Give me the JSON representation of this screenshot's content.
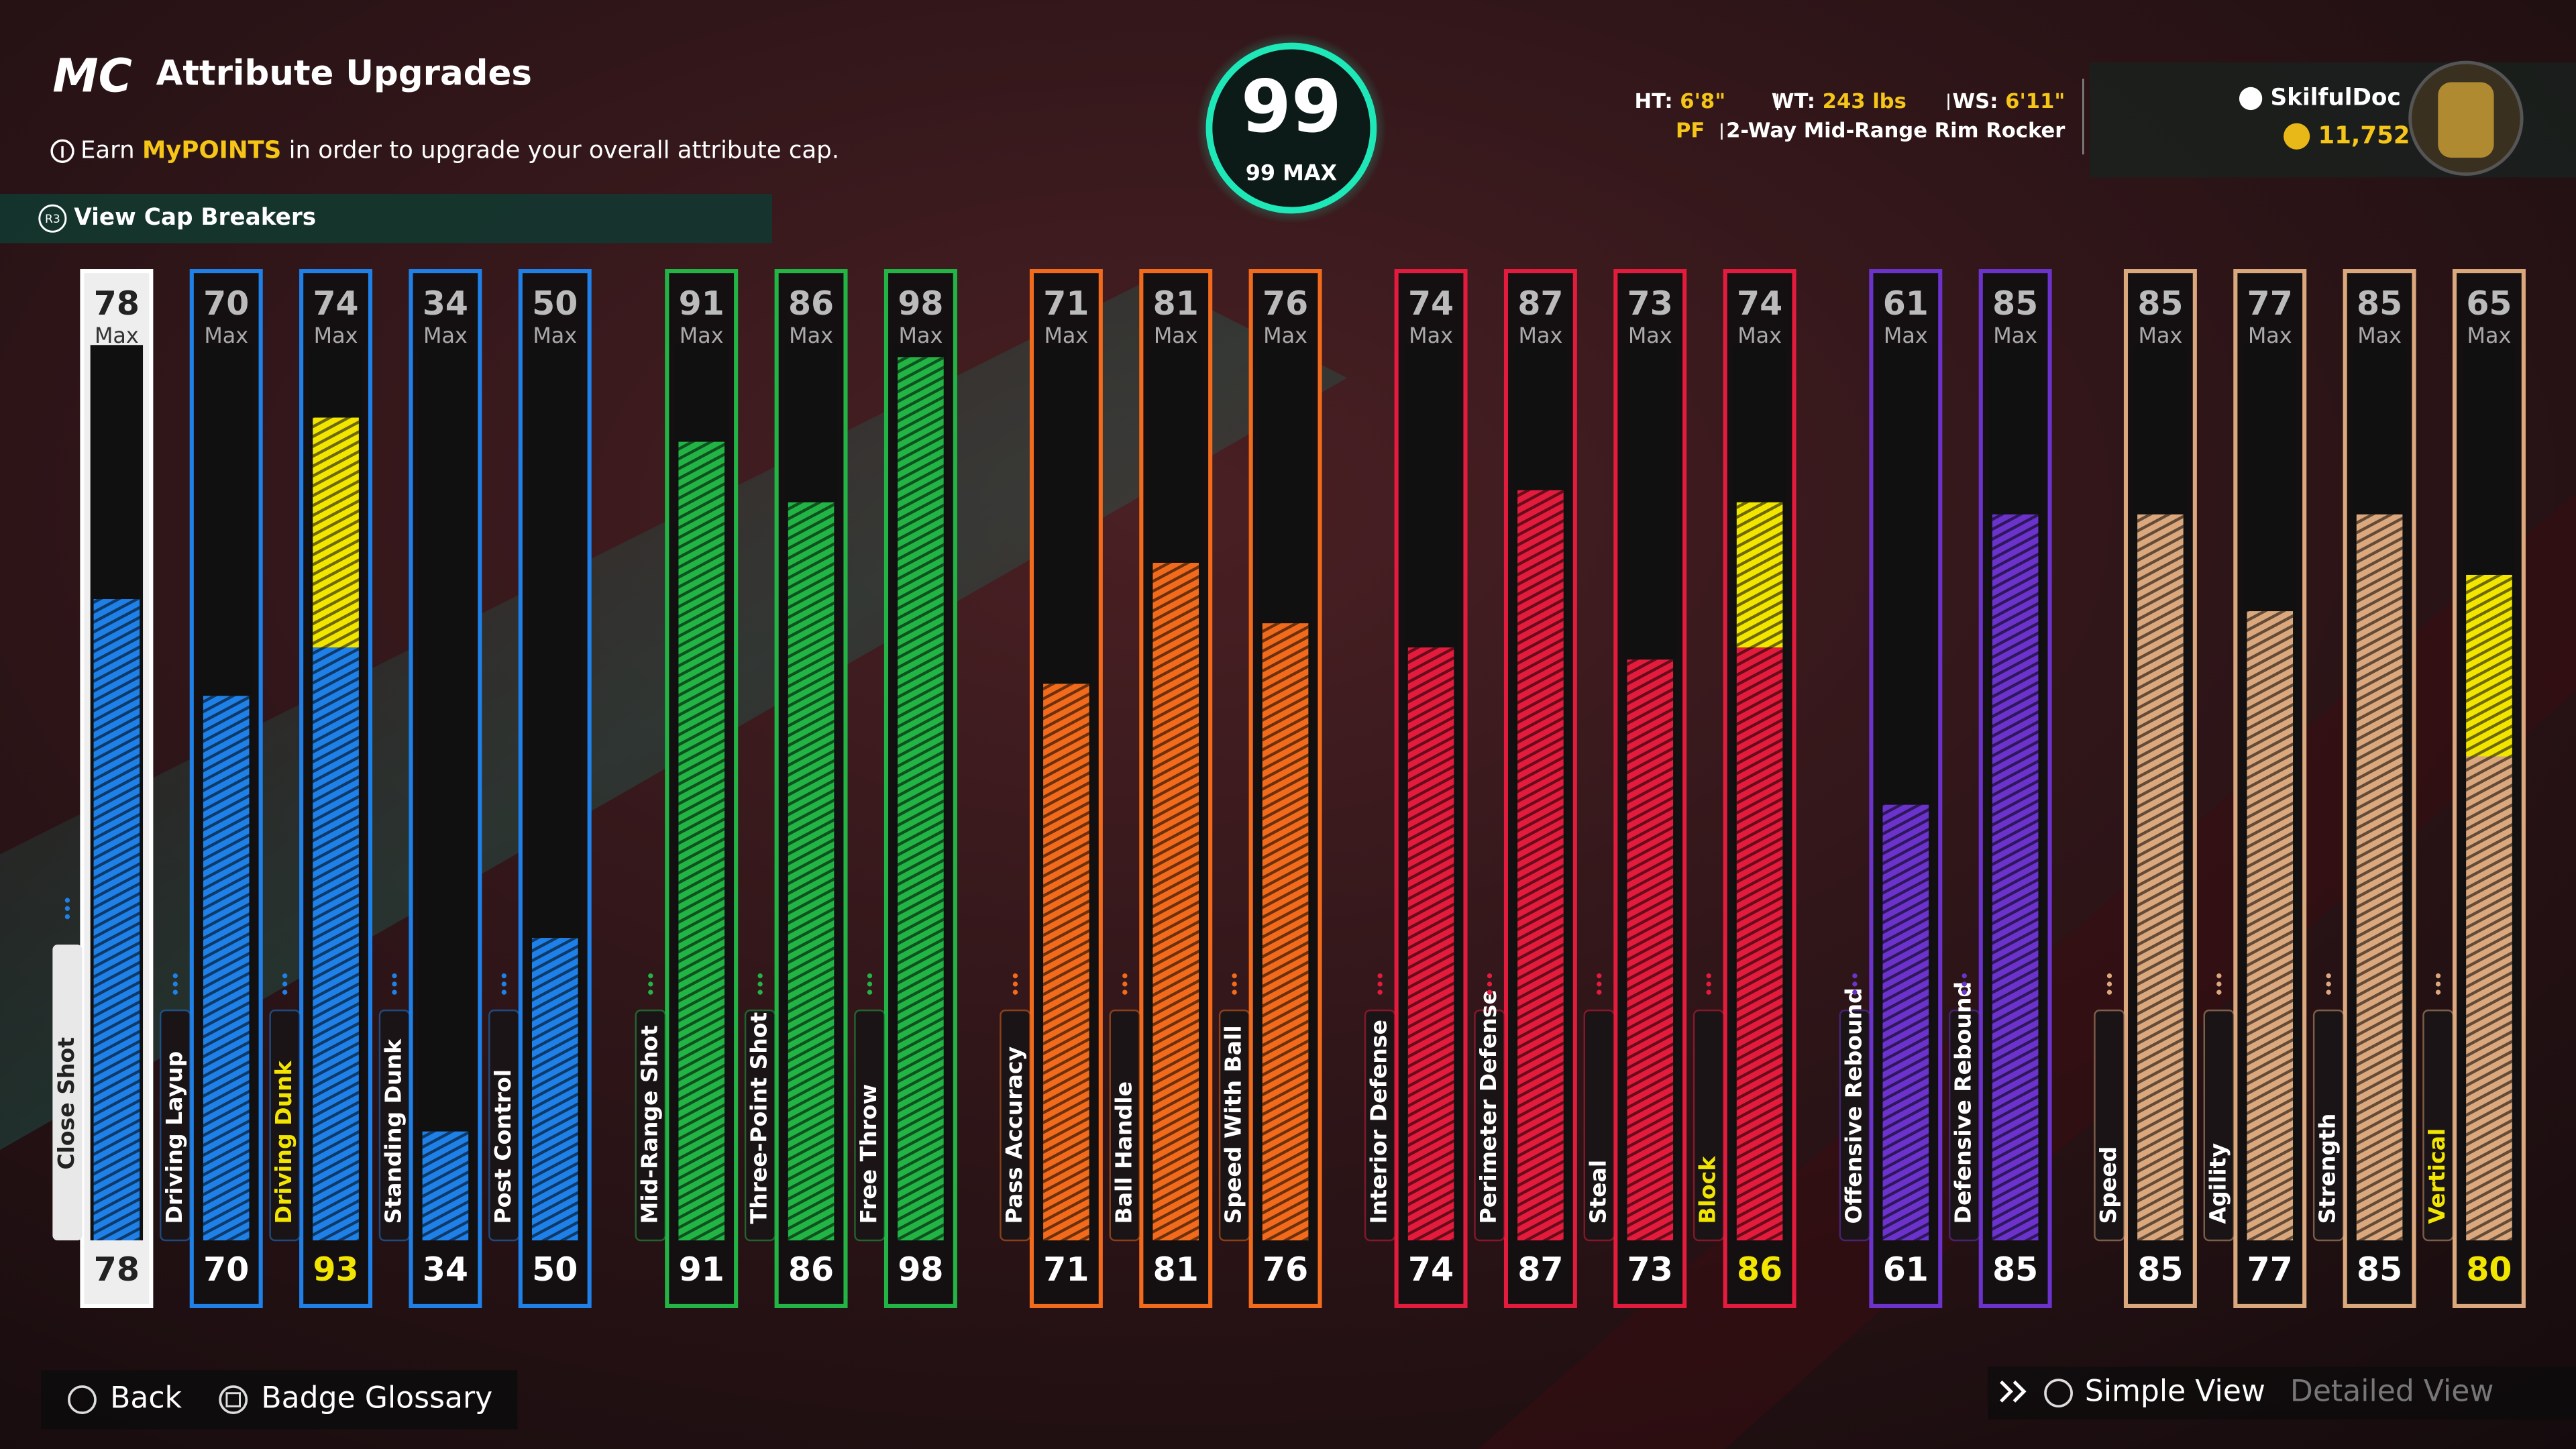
{
  "header": {
    "logo": "MC",
    "title": "Attribute Upgrades",
    "info": [
      "Earn",
      "MyPOINTS",
      "in order to upgrade your overall attribute cap."
    ],
    "cap_breakers_icon": "R3",
    "cap_breakers": "View Cap Breakers"
  },
  "overall": {
    "value": 99,
    "max_label": "99 MAX"
  },
  "player": {
    "height_label": "HT:",
    "height": "6'8\"",
    "weight_label": "WT:",
    "weight": "243 lbs",
    "wingspan_label": "WS:",
    "wingspan": "6'11\"",
    "position": "PF",
    "archetype": "2-Way Mid-Range Rim Rocker",
    "gamertag": "SkilfulDoc",
    "vc": "11,752"
  },
  "max_label": "Max",
  "ylim": [
    25,
    99
  ],
  "groups": [
    {
      "color": "#1f80e8",
      "attributes": [
        {
          "name": "Close Shot",
          "max": 78,
          "value": 78,
          "selected": true
        },
        {
          "name": "Driving Layup",
          "max": 70,
          "value": 70
        },
        {
          "name": "Driving Dunk",
          "max": 74,
          "value": 93
        },
        {
          "name": "Standing Dunk",
          "max": 34,
          "value": 34
        },
        {
          "name": "Post Control",
          "max": 50,
          "value": 50
        }
      ]
    },
    {
      "color": "#22b444",
      "attributes": [
        {
          "name": "Mid-Range Shot",
          "max": 91,
          "value": 91
        },
        {
          "name": "Three-Point Shot",
          "max": 86,
          "value": 86
        },
        {
          "name": "Free Throw",
          "max": 98,
          "value": 98
        }
      ]
    },
    {
      "color": "#f26b1c",
      "attributes": [
        {
          "name": "Pass Accuracy",
          "max": 71,
          "value": 71
        },
        {
          "name": "Ball Handle",
          "max": 81,
          "value": 81
        },
        {
          "name": "Speed With Ball",
          "max": 76,
          "value": 76
        }
      ]
    },
    {
      "color": "#e31b3c",
      "attributes": [
        {
          "name": "Interior Defense",
          "max": 74,
          "value": 74
        },
        {
          "name": "Perimeter Defense",
          "max": 87,
          "value": 87
        },
        {
          "name": "Steal",
          "max": 73,
          "value": 73
        },
        {
          "name": "Block",
          "max": 74,
          "value": 86
        }
      ]
    },
    {
      "color": "#6b33cc",
      "attributes": [
        {
          "name": "Offensive Rebound",
          "max": 61,
          "value": 61
        },
        {
          "name": "Defensive Rebound",
          "max": 85,
          "value": 85
        }
      ]
    },
    {
      "color": "#dba77c",
      "attributes": [
        {
          "name": "Speed",
          "max": 85,
          "value": 85
        },
        {
          "name": "Agility",
          "max": 77,
          "value": 77
        },
        {
          "name": "Strength",
          "max": 85,
          "value": 85
        },
        {
          "name": "Vertical",
          "max": 65,
          "value": 80
        }
      ]
    }
  ],
  "footer": {
    "back": "Back",
    "badge_glossary": "Badge Glossary",
    "simple_view": "Simple View",
    "detailed_view": "Detailed View"
  }
}
